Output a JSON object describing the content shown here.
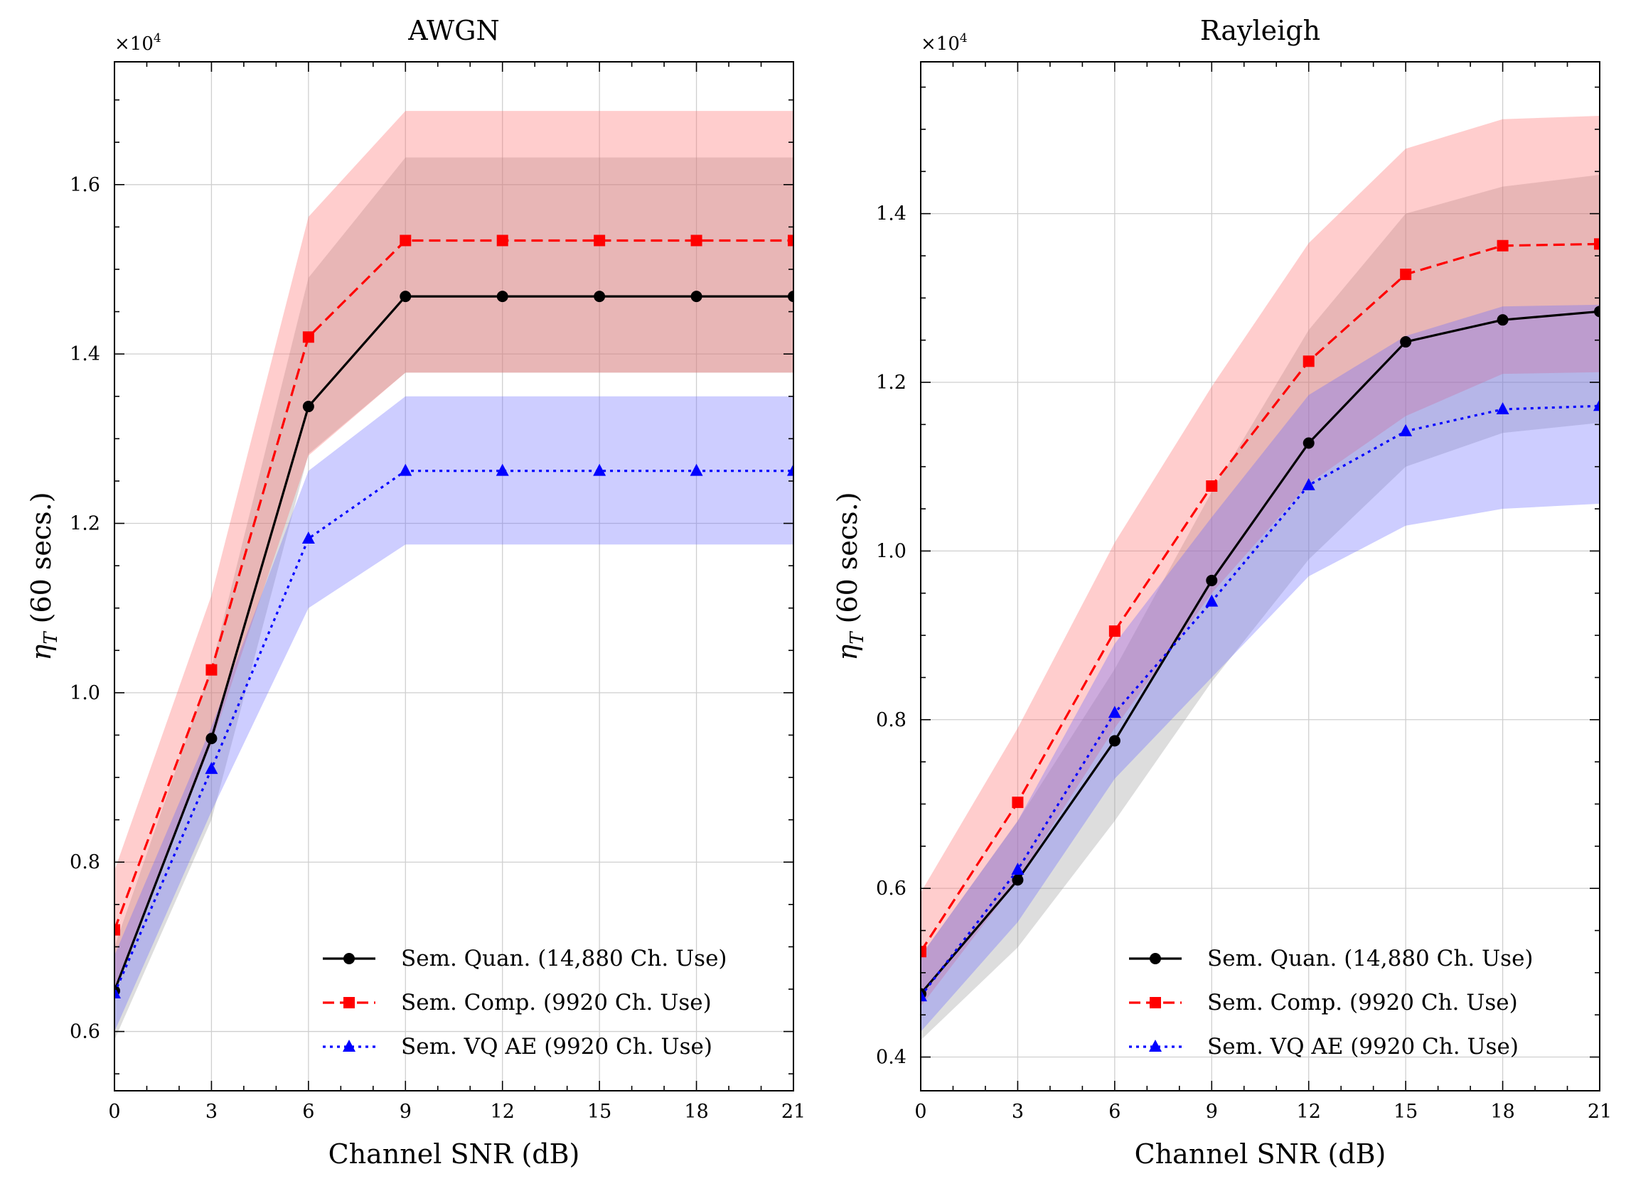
{
  "figure": {
    "y_scale_label": "×10",
    "y_scale_exp": "4"
  },
  "chart_data": [
    {
      "type": "line",
      "title": "AWGN",
      "xlabel": "Channel SNR (dB)",
      "ylabel_symbol": "η",
      "ylabel_sub": "T",
      "ylabel_rest": " (60 secs.)",
      "x": [
        0,
        3,
        6,
        9,
        12,
        15,
        18,
        21
      ],
      "xlim": [
        0,
        21
      ],
      "ylim": [
        0.53,
        1.745
      ],
      "xticks": [
        0,
        3,
        6,
        9,
        12,
        15,
        18,
        21
      ],
      "yticks": [
        0.6,
        0.8,
        1.0,
        1.2,
        1.4,
        1.6
      ],
      "ytick_labels": [
        "0.6",
        "0.8",
        "1.0",
        "1.2",
        "1.4",
        "1.6"
      ],
      "grid": true,
      "legend_position": "bottom-right",
      "series": [
        {
          "name": "Sem. Quan. (14,880 Ch. Use)",
          "color": "#000000",
          "band_color": "#999999",
          "marker": "circle",
          "dash": "solid",
          "values": [
            0.648,
            0.946,
            1.338,
            1.468,
            1.468,
            1.468,
            1.468,
            1.468
          ],
          "lower": [
            0.59,
            0.85,
            1.282,
            1.378,
            1.378,
            1.378,
            1.378,
            1.378
          ],
          "upper": [
            0.7,
            1.03,
            1.49,
            1.632,
            1.632,
            1.632,
            1.632,
            1.632
          ]
        },
        {
          "name": "Sem. Comp. (9920 Ch. Use)",
          "color": "#ff0000",
          "band_color": "#ff6666",
          "marker": "square",
          "dash": "dashed",
          "values": [
            0.72,
            1.027,
            1.42,
            1.534,
            1.534,
            1.534,
            1.534,
            1.534
          ],
          "lower": [
            0.65,
            0.94,
            1.28,
            1.378,
            1.378,
            1.378,
            1.378,
            1.378
          ],
          "upper": [
            0.79,
            1.115,
            1.562,
            1.687,
            1.687,
            1.687,
            1.687,
            1.687
          ]
        },
        {
          "name": "Sem. VQ AE (9920 Ch. Use)",
          "color": "#0000ff",
          "band_color": "#6666ff",
          "marker": "triangle",
          "dash": "dotted",
          "values": [
            0.645,
            0.91,
            1.182,
            1.262,
            1.262,
            1.262,
            1.262,
            1.262
          ],
          "lower": [
            0.6,
            0.86,
            1.1,
            1.175,
            1.175,
            1.175,
            1.175,
            1.175
          ],
          "upper": [
            0.69,
            0.96,
            1.262,
            1.35,
            1.35,
            1.35,
            1.35,
            1.35
          ]
        }
      ]
    },
    {
      "type": "line",
      "title": "Rayleigh",
      "xlabel": "Channel SNR (dB)",
      "ylabel_symbol": "η",
      "ylabel_sub": "T",
      "ylabel_rest": " (60 secs.)",
      "x": [
        0,
        3,
        6,
        9,
        12,
        15,
        18,
        21
      ],
      "xlim": [
        0,
        21
      ],
      "ylim": [
        0.36,
        1.58
      ],
      "xticks": [
        0,
        3,
        6,
        9,
        12,
        15,
        18,
        21
      ],
      "yticks": [
        0.4,
        0.6,
        0.8,
        1.0,
        1.2,
        1.4
      ],
      "ytick_labels": [
        "0.4",
        "0.6",
        "0.8",
        "1.0",
        "1.2",
        "1.4"
      ],
      "grid": true,
      "legend_position": "bottom-right",
      "series": [
        {
          "name": "Sem. Quan. (14,880 Ch. Use)",
          "color": "#000000",
          "band_color": "#999999",
          "marker": "circle",
          "dash": "solid",
          "values": [
            0.475,
            0.61,
            0.775,
            0.965,
            1.128,
            1.248,
            1.274,
            1.284
          ],
          "lower": [
            0.42,
            0.53,
            0.68,
            0.845,
            0.99,
            1.1,
            1.14,
            1.152
          ],
          "upper": [
            0.52,
            0.68,
            0.86,
            1.07,
            1.262,
            1.4,
            1.432,
            1.446
          ]
        },
        {
          "name": "Sem. Comp. (9920 Ch. Use)",
          "color": "#ff0000",
          "band_color": "#ff6666",
          "marker": "square",
          "dash": "dashed",
          "values": [
            0.525,
            0.702,
            0.905,
            1.077,
            1.225,
            1.328,
            1.362,
            1.364
          ],
          "lower": [
            0.46,
            0.61,
            0.79,
            0.95,
            1.08,
            1.16,
            1.21,
            1.212
          ],
          "upper": [
            0.595,
            0.79,
            1.01,
            1.195,
            1.365,
            1.477,
            1.512,
            1.516
          ]
        },
        {
          "name": "Sem. VQ AE (9920 Ch. Use)",
          "color": "#0000ff",
          "band_color": "#6666ff",
          "marker": "triangle",
          "dash": "dotted",
          "values": [
            0.472,
            0.622,
            0.808,
            0.94,
            1.078,
            1.142,
            1.168,
            1.172
          ],
          "lower": [
            0.43,
            0.56,
            0.73,
            0.85,
            0.97,
            1.03,
            1.05,
            1.056
          ],
          "upper": [
            0.52,
            0.68,
            0.89,
            1.04,
            1.185,
            1.255,
            1.29,
            1.292
          ]
        }
      ]
    }
  ]
}
